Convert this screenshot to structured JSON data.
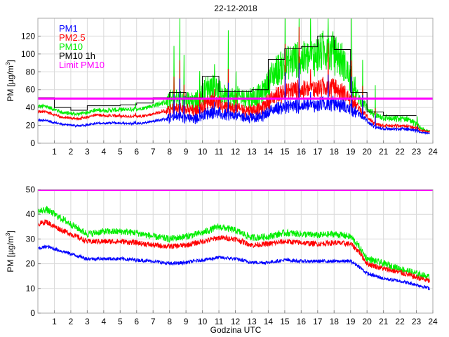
{
  "title": "22-12-2018",
  "colors": {
    "pm1": "#0000ff",
    "pm25": "#ff0000",
    "pm10": "#00ee00",
    "pm10_1h": "#000000",
    "limit": "#ff00ff",
    "grid": "#d9d9d9"
  },
  "chart_data": [
    {
      "type": "line",
      "name": "top-plot",
      "title": "22-12-2018",
      "xlabel": "",
      "ylabel": "PM [µg/m",
      "ylabel_sup": "3",
      "ylabel_end": "]",
      "xlim": [
        0,
        24
      ],
      "ylim": [
        0,
        140
      ],
      "xticks": [
        "1",
        "2",
        "3",
        "4",
        "5",
        "6",
        "7",
        "8",
        "9",
        "10",
        "11",
        "12",
        "13",
        "14",
        "15",
        "16",
        "17",
        "18",
        "19",
        "20",
        "21",
        "22",
        "23",
        "24"
      ],
      "yticks": [
        "0",
        "20",
        "40",
        "60",
        "80",
        "100",
        "120"
      ],
      "grid": true,
      "legend_position": "top-left",
      "legend": [
        "PM1",
        "PM2.5",
        "PM10",
        "PM10 1h",
        "Limit PM10"
      ],
      "limit": 50,
      "series_hourly_profile": {
        "hours": [
          0,
          1,
          2,
          3,
          4,
          5,
          6,
          7,
          8,
          9,
          10,
          11,
          12,
          13,
          14,
          15,
          16,
          17,
          18,
          19,
          20,
          21,
          22,
          23
        ],
        "PM1": [
          29,
          24,
          22,
          25,
          26,
          25,
          26,
          30,
          34,
          30,
          40,
          36,
          33,
          33,
          45,
          48,
          48,
          50,
          48,
          38,
          20,
          18,
          18,
          13
        ],
        "PM2.5": [
          40,
          33,
          31,
          36,
          35,
          34,
          35,
          40,
          44,
          40,
          55,
          45,
          43,
          43,
          62,
          68,
          68,
          72,
          66,
          45,
          24,
          22,
          22,
          15
        ],
        "PM10": [
          47,
          39,
          37,
          42,
          42,
          43,
          45,
          51,
          57,
          51,
          75,
          58,
          58,
          60,
          94,
          106,
          108,
          120,
          105,
          57,
          35,
          31,
          31,
          16
        ]
      },
      "series": [
        {
          "name": "PM10 1h",
          "x": [
            0,
            1,
            2,
            3,
            4,
            5,
            6,
            7,
            8,
            9,
            10,
            11,
            12,
            13,
            14,
            15,
            16,
            17,
            18,
            19,
            20,
            21,
            22,
            23
          ],
          "values": [
            51,
            40,
            37,
            42,
            42,
            43,
            45,
            51,
            57,
            51,
            75,
            58,
            58,
            60,
            94,
            106,
            108,
            120,
            105,
            57,
            35,
            31,
            31,
            null
          ]
        },
        {
          "name": "Limit PM10",
          "values": [
            50,
            50
          ]
        }
      ]
    },
    {
      "type": "line",
      "name": "bottom-plot",
      "xlabel": "Godzina UTC",
      "ylabel": "PM [µg/m",
      "ylabel_sup": "3",
      "ylabel_end": "]",
      "xlim": [
        0,
        24
      ],
      "ylim": [
        0,
        50
      ],
      "xticks": [
        "1",
        "2",
        "3",
        "4",
        "5",
        "6",
        "7",
        "8",
        "9",
        "10",
        "11",
        "12",
        "13",
        "14",
        "15",
        "16",
        "17",
        "18",
        "19",
        "20",
        "21",
        "22",
        "23",
        "24"
      ],
      "yticks": [
        "0",
        "10",
        "20",
        "30",
        "40",
        "50"
      ],
      "grid": true,
      "limit": 50,
      "series_profile": {
        "x": [
          0,
          0.5,
          1,
          2,
          3,
          4,
          5,
          6,
          7,
          8,
          9,
          10,
          11,
          12,
          13,
          14,
          15,
          16,
          17,
          18,
          19,
          19.5,
          20,
          21,
          22,
          23,
          23.8
        ],
        "PM1": [
          26,
          27,
          26,
          24,
          22,
          22,
          22,
          21.5,
          21,
          20,
          20.5,
          21.5,
          22.5,
          22,
          20.5,
          20.5,
          21.5,
          21,
          21,
          21,
          21,
          19,
          16,
          14,
          13,
          11.5,
          10
        ],
        "PM2.5": [
          36,
          37,
          35,
          32,
          29,
          29,
          29,
          28.5,
          27.5,
          27,
          27.5,
          29,
          30.5,
          30,
          27.5,
          28,
          29,
          28.5,
          28,
          28.5,
          28,
          25,
          20,
          18,
          16.5,
          14.5,
          13
        ],
        "PM10": [
          41,
          42,
          40,
          36,
          32,
          33,
          33,
          32.5,
          31,
          30,
          31,
          32.5,
          35,
          33.5,
          30.5,
          31,
          32.5,
          32,
          31.5,
          32,
          31,
          27,
          22,
          20,
          18,
          16,
          14.5
        ]
      },
      "series": [
        {
          "name": "Limit PM10",
          "values": [
            50,
            50
          ]
        }
      ]
    }
  ]
}
